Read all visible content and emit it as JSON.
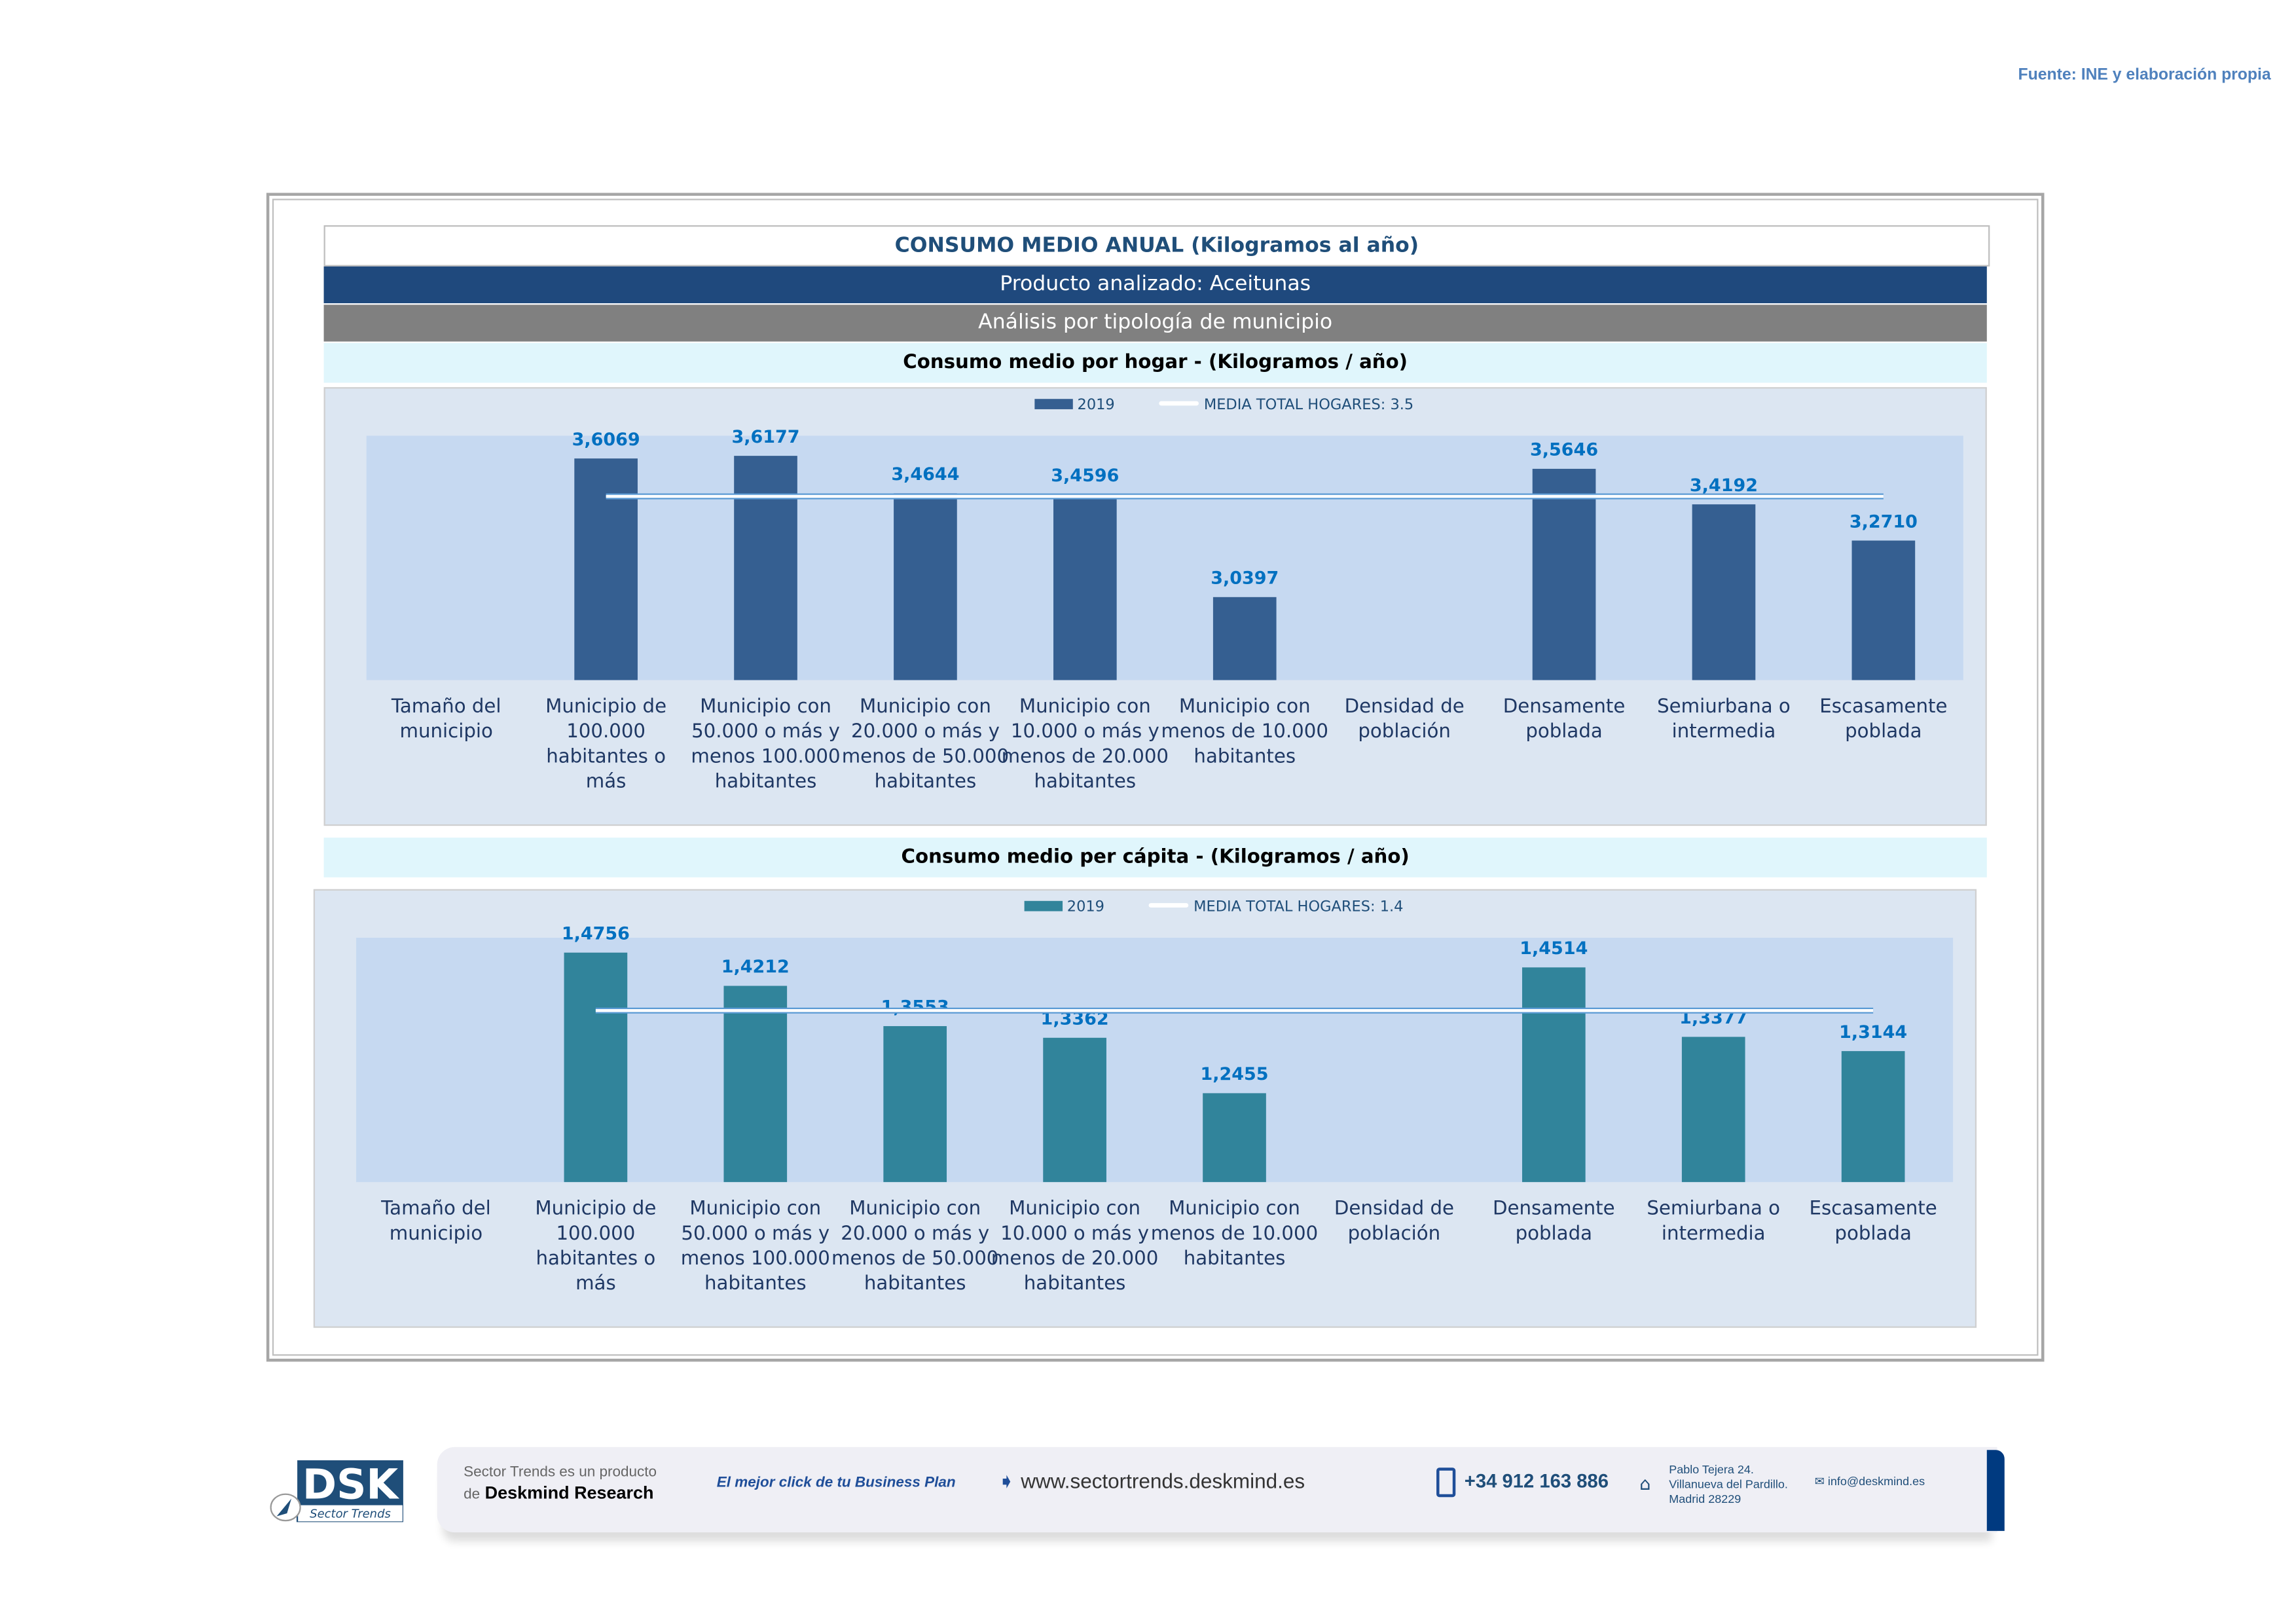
{
  "source": "Fuente: INE y elaboración propia",
  "header": {
    "title": "CONSUMO MEDIO ANUAL (Kilogramos al año)",
    "product": "Producto analizado: Aceitunas",
    "analysis": "Análisis por tipología de municipio"
  },
  "colors": {
    "bar_hogar": "#355f91",
    "bar_capita": "#31849b",
    "mean_line": "#ffffff",
    "value_label": "#0070c0",
    "header_dark": "#1f497d",
    "header_gray": "#808080"
  },
  "chart_data": [
    {
      "type": "bar",
      "title": "Consumo medio por hogar -  (Kilogramos / año)",
      "categories": [
        "Tamaño del municipio",
        "Municipio de 100.000 habitantes o más",
        "Municipio con 50.000 o más y menos 100.000 habitantes",
        "Municipio con 20.000 o más y menos de 50.000 habitantes",
        "Municipio con 10.000 o más y menos de 20.000 habitantes",
        "Municipio con menos de 10.000 habitantes",
        "Densidad de población",
        "Densamente poblada",
        "Semiurbana o intermedia",
        "Escasamente poblada"
      ],
      "series": [
        {
          "name": "2019",
          "values": [
            null,
            3.6069,
            3.6177,
            3.4644,
            3.4596,
            3.0397,
            null,
            3.5646,
            3.4192,
            3.271
          ],
          "labels": [
            "",
            "3,6069",
            "3,6177",
            "3,4644",
            "3,4596",
            "3,0397",
            "",
            "3,5646",
            "3,4192",
            "3,2710"
          ]
        }
      ],
      "mean": {
        "name": "MEDIA TOTAL  HOGARES:",
        "value": 3.5,
        "label": "3.5"
      },
      "ylim": [
        2.7,
        3.7
      ],
      "grid": false,
      "legend": "top"
    },
    {
      "type": "bar",
      "title": "Consumo medio per cápita -  (Kilogramos / año)",
      "categories": [
        "Tamaño del municipio",
        "Municipio de 100.000 habitantes o más",
        "Municipio con 50.000 o más y menos 100.000 habitantes",
        "Municipio con 20.000 o más y menos de 50.000 habitantes",
        "Municipio con 10.000 o más y menos de 20.000 habitantes",
        "Municipio con menos de 10.000 habitantes",
        "Densidad de población",
        "Densamente poblada",
        "Semiurbana o intermedia",
        "Escasamente poblada"
      ],
      "series": [
        {
          "name": "2019",
          "values": [
            null,
            1.4756,
            1.4212,
            1.3553,
            1.3362,
            1.2455,
            null,
            1.4514,
            1.3377,
            1.3144
          ],
          "labels": [
            "",
            "1,4756",
            "1,4212",
            "1,3553",
            "1,3362",
            "1,2455",
            "",
            "1,4514",
            "1,3377",
            "1,3144"
          ]
        }
      ],
      "mean": {
        "name": "MEDIA TOTAL  HOGARES:",
        "value": 1.4,
        "label": "1.4"
      },
      "ylim": [
        1.1,
        1.5
      ],
      "grid": false,
      "legend": "top"
    }
  ],
  "footer": {
    "logo": "DSK Sector Trends",
    "tag1": "Sector Trends es un producto",
    "tag2_pre": "de",
    "tag2_brand": "Deskmind Research",
    "slogan": "El mejor click de tu Business Plan",
    "web": "www.sectortrends.deskmind.es",
    "phone": "+34 912 163 886",
    "address": [
      "Pablo Tejera 24.",
      "Villanueva del Pardillo.",
      "Madrid 28229"
    ],
    "email": "info@deskmind.es"
  }
}
